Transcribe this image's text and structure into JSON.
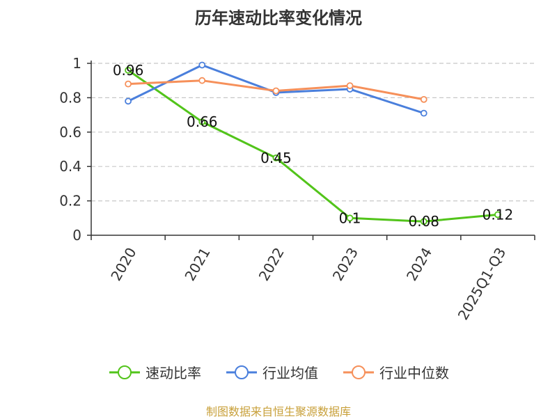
{
  "chart_data": {
    "type": "line",
    "title": "历年速动比率变化情况",
    "categories": [
      "2020",
      "2021",
      "2022",
      "2023",
      "2024",
      "2025Q1-Q3"
    ],
    "ylim": [
      0,
      1
    ],
    "yticks": [
      "0",
      "0.2",
      "0.4",
      "0.6",
      "0.8",
      "1"
    ],
    "grid": true,
    "legend_position": "bottom",
    "series": [
      {
        "name": "速动比率",
        "color": "#52c41a",
        "values": [
          0.96,
          0.66,
          0.45,
          0.1,
          0.08,
          0.12
        ],
        "labels": [
          "0.96",
          "0.66",
          "0.45",
          "0.1",
          "0.08",
          "0.12"
        ]
      },
      {
        "name": "行业均值",
        "color": "#4a7fdc",
        "values": [
          0.78,
          0.99,
          0.83,
          0.85,
          0.71,
          null
        ]
      },
      {
        "name": "行业中位数",
        "color": "#f6905a",
        "values": [
          0.88,
          0.9,
          0.84,
          0.87,
          0.79,
          null
        ]
      }
    ]
  },
  "source": "制图数据来自恒生聚源数据库"
}
